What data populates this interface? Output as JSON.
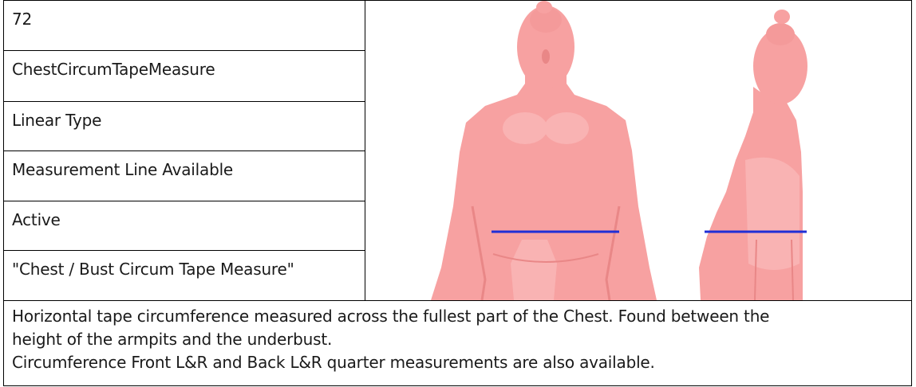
{
  "fields": {
    "id": "72",
    "name": "ChestCircumTapeMeasure",
    "type": "Linear Type",
    "line_status": "Measurement Line Available",
    "status": "Active",
    "display_name": "\"Chest / Bust Circum Tape Measure\""
  },
  "figure": {
    "body_color": "#f7a1a1",
    "body_shade": "#e98787",
    "measure_line_color": "#1f2fd6",
    "views": [
      "front-view",
      "side-view"
    ]
  },
  "description": {
    "line1": "Horizontal tape circumference measured across the fullest part of the Chest.  Found between the",
    "line2": "height of the armpits and the underbust.",
    "line3": "Circumference Front L&R and Back L&R quarter measurements are also available."
  }
}
